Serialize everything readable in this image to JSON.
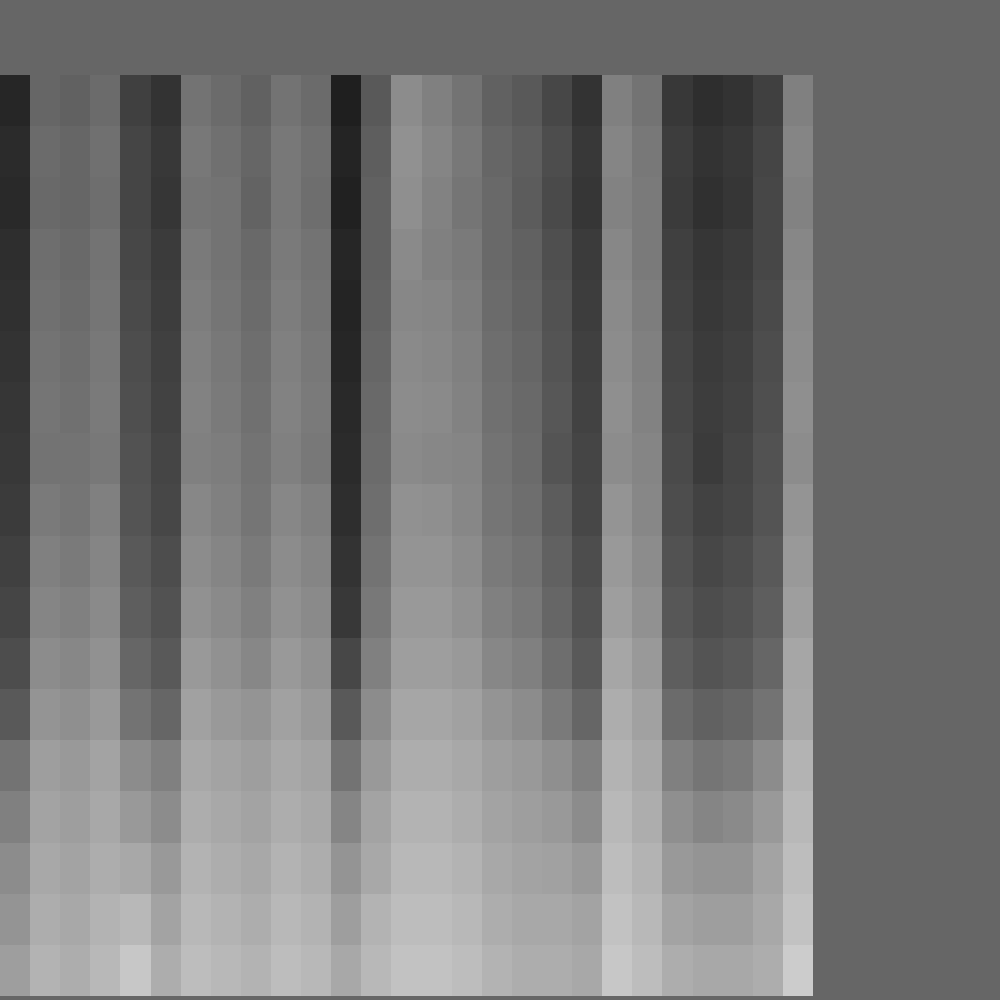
{
  "chart_data": {
    "type": "heatmap",
    "tick_labels": false,
    "zlim": [
      0,
      100
    ],
    "cells": [
      [
        15,
        40,
        38,
        42,
        25,
        20,
        45,
        42,
        38,
        45,
        42,
        12,
        35,
        55,
        50,
        45,
        38,
        35,
        28,
        20,
        50,
        45,
        22,
        18,
        20,
        25,
        50
      ],
      [
        17,
        42,
        40,
        44,
        27,
        22,
        47,
        44,
        40,
        47,
        44,
        14,
        37,
        57,
        52,
        47,
        40,
        37,
        30,
        22,
        52,
        47,
        24,
        20,
        22,
        27,
        52
      ],
      [
        16,
        41,
        40,
        43,
        27,
        21,
        46,
        45,
        39,
        47,
        43,
        13,
        38,
        56,
        51,
        46,
        41,
        36,
        29,
        21,
        51,
        48,
        23,
        19,
        21,
        28,
        51
      ],
      [
        18,
        43,
        41,
        45,
        28,
        23,
        48,
        45,
        41,
        48,
        45,
        15,
        38,
        54,
        50,
        48,
        41,
        38,
        31,
        23,
        53,
        48,
        25,
        21,
        23,
        28,
        53
      ],
      [
        19,
        44,
        42,
        46,
        29,
        24,
        49,
        46,
        42,
        49,
        46,
        14,
        39,
        53,
        52,
        49,
        42,
        39,
        32,
        24,
        54,
        49,
        26,
        22,
        24,
        29,
        54
      ],
      [
        20,
        45,
        43,
        47,
        30,
        25,
        50,
        47,
        43,
        50,
        47,
        15,
        40,
        54,
        53,
        50,
        43,
        40,
        33,
        25,
        55,
        50,
        27,
        23,
        25,
        30,
        55
      ],
      [
        21,
        46,
        44,
        48,
        31,
        26,
        51,
        48,
        44,
        51,
        48,
        16,
        41,
        55,
        54,
        51,
        44,
        41,
        34,
        26,
        56,
        51,
        28,
        24,
        26,
        31,
        56
      ],
      [
        22,
        45,
        45,
        47,
        32,
        27,
        50,
        49,
        45,
        50,
        47,
        17,
        42,
        54,
        53,
        52,
        45,
        42,
        33,
        27,
        55,
        52,
        29,
        23,
        27,
        32,
        55
      ],
      [
        23,
        48,
        46,
        50,
        33,
        28,
        53,
        50,
        46,
        53,
        50,
        18,
        43,
        57,
        56,
        53,
        46,
        43,
        36,
        28,
        58,
        53,
        30,
        26,
        28,
        33,
        58
      ],
      [
        25,
        50,
        48,
        52,
        35,
        30,
        55,
        52,
        48,
        55,
        52,
        20,
        45,
        58,
        58,
        55,
        48,
        45,
        38,
        30,
        60,
        55,
        32,
        28,
        30,
        35,
        60
      ],
      [
        27,
        52,
        50,
        54,
        37,
        32,
        57,
        54,
        50,
        57,
        54,
        22,
        47,
        60,
        60,
        57,
        50,
        47,
        40,
        32,
        62,
        57,
        34,
        30,
        32,
        37,
        62
      ],
      [
        30,
        55,
        53,
        57,
        40,
        35,
        60,
        57,
        53,
        60,
        57,
        28,
        50,
        62,
        62,
        60,
        53,
        50,
        43,
        35,
        65,
        60,
        37,
        33,
        35,
        40,
        65
      ],
      [
        35,
        58,
        56,
        60,
        45,
        40,
        63,
        60,
        58,
        63,
        60,
        35,
        55,
        65,
        65,
        63,
        58,
        55,
        48,
        40,
        68,
        63,
        42,
        38,
        40,
        45,
        66
      ],
      [
        45,
        62,
        60,
        64,
        55,
        50,
        66,
        64,
        62,
        66,
        64,
        45,
        60,
        68,
        68,
        66,
        62,
        60,
        56,
        50,
        70,
        66,
        50,
        46,
        48,
        55,
        70
      ],
      [
        50,
        64,
        62,
        66,
        60,
        55,
        68,
        66,
        64,
        68,
        66,
        52,
        64,
        70,
        70,
        68,
        64,
        62,
        60,
        55,
        72,
        68,
        56,
        52,
        54,
        60,
        72
      ],
      [
        55,
        66,
        64,
        68,
        66,
        60,
        70,
        68,
        66,
        70,
        68,
        58,
        66,
        72,
        72,
        70,
        66,
        64,
        63,
        60,
        74,
        70,
        60,
        58,
        58,
        64,
        74
      ],
      [
        58,
        68,
        66,
        70,
        72,
        64,
        72,
        70,
        68,
        72,
        70,
        62,
        70,
        74,
        74,
        72,
        68,
        66,
        66,
        64,
        76,
        72,
        64,
        62,
        62,
        66,
        76
      ],
      [
        62,
        70,
        68,
        72,
        78,
        68,
        74,
        72,
        70,
        74,
        72,
        66,
        72,
        76,
        76,
        74,
        70,
        68,
        68,
        66,
        78,
        74,
        68,
        66,
        66,
        68,
        80
      ]
    ]
  }
}
